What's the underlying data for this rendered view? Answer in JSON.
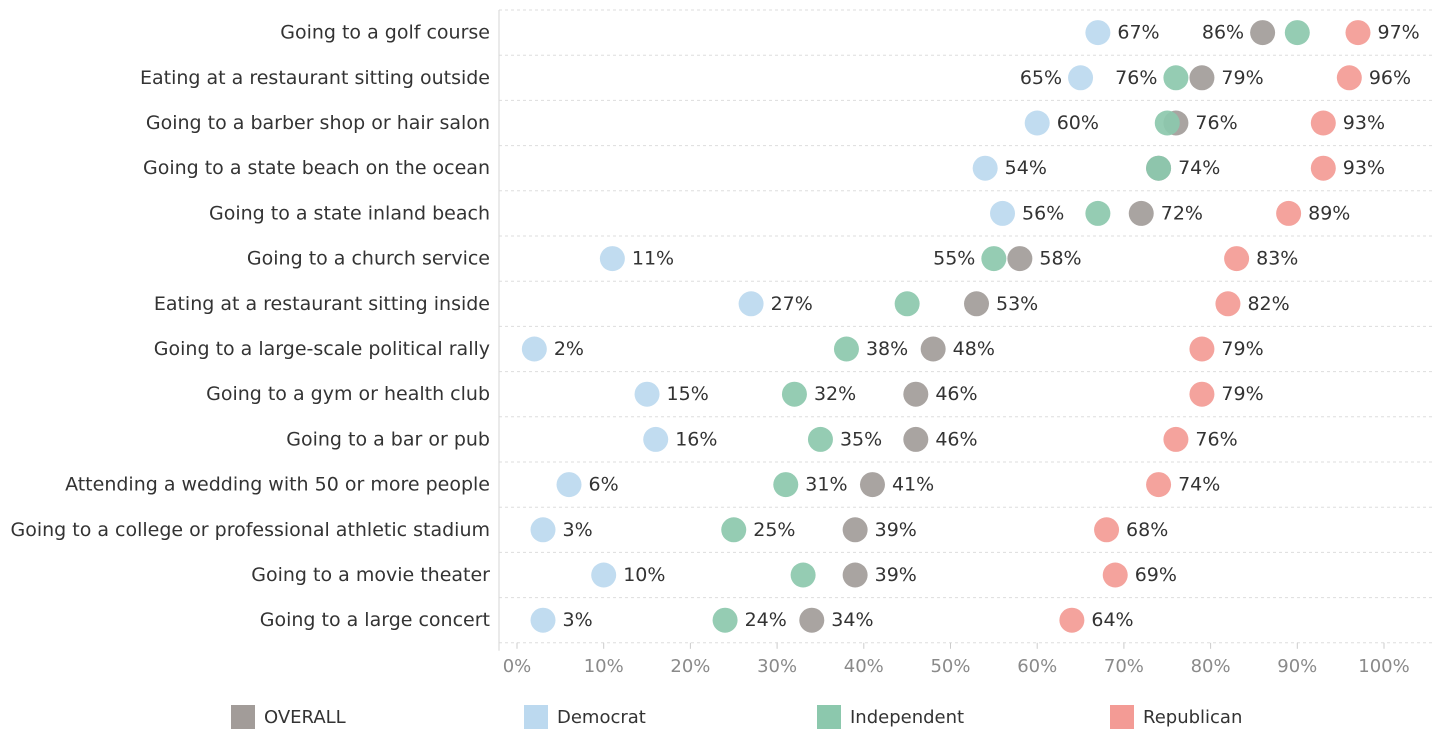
{
  "chart_data": {
    "type": "scatter",
    "xlim": [
      0,
      100
    ],
    "x_ticks": [
      "0%",
      "10%",
      "20%",
      "30%",
      "40%",
      "50%",
      "60%",
      "70%",
      "80%",
      "90%",
      "100%"
    ],
    "grid": "horizontal dashed row separators",
    "legend_position": "bottom",
    "categories": [
      "Going to a golf course",
      "Eating at a restaurant sitting outside",
      "Going to a barber shop or hair salon",
      "Going to a state beach on the ocean",
      "Going to a state inland beach",
      "Going to a church service",
      "Eating at a restaurant sitting inside",
      "Going to a large-scale political rally",
      "Going to a gym or health club",
      "Going to a bar or pub",
      "Attending a wedding with 50 or more people",
      "Going to a college or professional athletic stadium",
      "Going to a movie theater",
      "Going to a large concert"
    ],
    "series": [
      {
        "name": "OVERALL",
        "color": "#a29c99",
        "values": [
          86,
          79,
          76,
          74,
          72,
          58,
          53,
          48,
          46,
          46,
          41,
          39,
          39,
          34
        ],
        "labels": [
          "86%",
          "79%",
          "76%",
          "",
          "72%",
          "58%",
          "53%",
          "48%",
          "46%",
          "46%",
          "41%",
          "39%",
          "39%",
          "34%"
        ]
      },
      {
        "name": "Democrat",
        "color": "#bcd9ef",
        "values": [
          67,
          65,
          60,
          54,
          56,
          11,
          27,
          2,
          15,
          16,
          6,
          3,
          10,
          3
        ],
        "labels": [
          "67%",
          "65%",
          "60%",
          "54%",
          "56%",
          "11%",
          "27%",
          "2%",
          "15%",
          "16%",
          "6%",
          "3%",
          "10%",
          "3%"
        ]
      },
      {
        "name": "Independent",
        "color": "#8cc8ad",
        "values": [
          90,
          76,
          75,
          74,
          67,
          55,
          45,
          38,
          32,
          35,
          31,
          25,
          33,
          24
        ],
        "labels": [
          "",
          "76%",
          "",
          "74%",
          "",
          "55%",
          "",
          "38%",
          "32%",
          "35%",
          "31%",
          "25%",
          "",
          "24%"
        ]
      },
      {
        "name": "Republican",
        "color": "#f39b95",
        "values": [
          97,
          96,
          93,
          93,
          89,
          83,
          82,
          79,
          79,
          76,
          74,
          68,
          69,
          64
        ],
        "labels": [
          "97%",
          "96%",
          "93%",
          "93%",
          "89%",
          "83%",
          "82%",
          "79%",
          "79%",
          "76%",
          "74%",
          "68%",
          "69%",
          "64%"
        ]
      }
    ],
    "label_placement": [
      [
        "left",
        "right",
        "right",
        "right"
      ],
      [
        "right",
        "left",
        "left",
        "right"
      ],
      [
        "right",
        "right",
        "right",
        "right"
      ],
      [
        "right",
        "right",
        "right",
        "right"
      ],
      [
        "right",
        "right",
        "right",
        "right"
      ],
      [
        "right",
        "right",
        "left",
        "right"
      ],
      [
        "right",
        "right",
        "right",
        "right"
      ],
      [
        "right",
        "right",
        "right",
        "right"
      ],
      [
        "right",
        "right",
        "right",
        "right"
      ],
      [
        "right",
        "right",
        "right",
        "right"
      ],
      [
        "right",
        "right",
        "right",
        "right"
      ],
      [
        "right",
        "right",
        "right",
        "right"
      ],
      [
        "right",
        "right",
        "right",
        "right"
      ],
      [
        "right",
        "right",
        "right",
        "right"
      ]
    ]
  },
  "legend": [
    {
      "label": "OVERALL",
      "color": "#a29c99"
    },
    {
      "label": "Democrat",
      "color": "#bcd9ef"
    },
    {
      "label": "Independent",
      "color": "#8cc8ad"
    },
    {
      "label": "Republican",
      "color": "#f39b95"
    }
  ]
}
